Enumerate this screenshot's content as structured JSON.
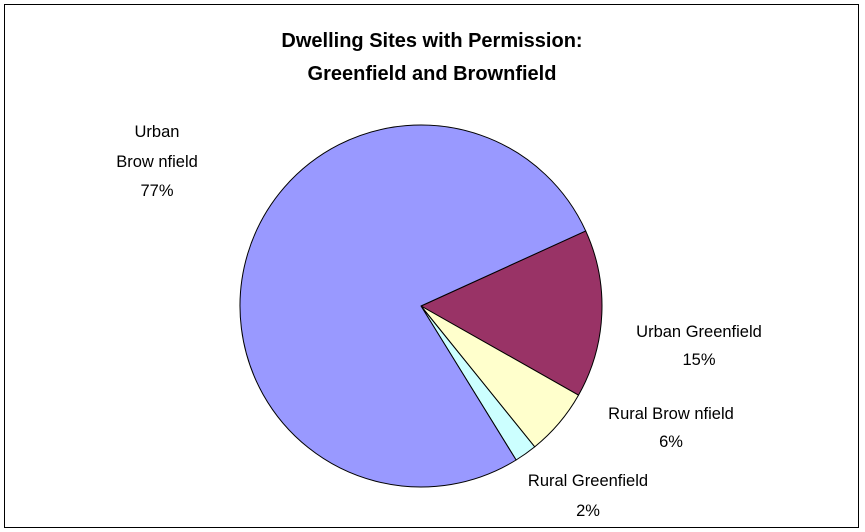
{
  "chart_data": {
    "type": "pie",
    "title_lines": [
      "Dwelling Sites with Permission:",
      "Greenfield and Brownfield"
    ],
    "slices": [
      {
        "name": "Urban Greenfield",
        "label_lines": [
          "Urban Greenfield"
        ],
        "pct_label": "15%",
        "value": 15,
        "color": "#993366"
      },
      {
        "name": "Rural Brownfield",
        "label_lines": [
          "Rural Brow nfield"
        ],
        "pct_label": "6%",
        "value": 6,
        "color": "#FFFFCC"
      },
      {
        "name": "Rural Greenfield",
        "label_lines": [
          "Rural Greenfield"
        ],
        "pct_label": "2%",
        "value": 2,
        "color": "#CCFFFF"
      },
      {
        "name": "Urban Brownfield",
        "label_lines": [
          "Urban",
          "Brow nfield"
        ],
        "pct_label": "77%",
        "value": 77,
        "color": "#9999FF"
      }
    ],
    "legend": "none",
    "data_labels": "category name and percentage"
  }
}
